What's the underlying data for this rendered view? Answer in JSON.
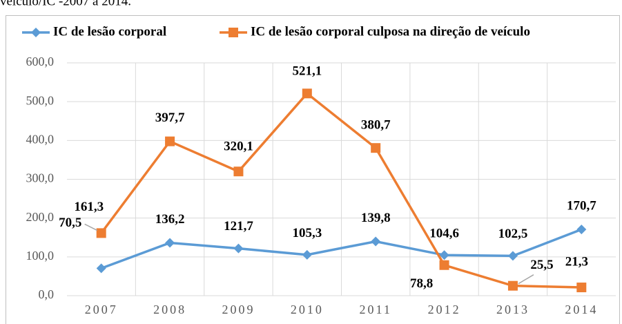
{
  "chart_data": {
    "type": "line",
    "caption": "veículo/IC -2007 a 2014.",
    "categories": [
      "2007",
      "2008",
      "2009",
      "2010",
      "2011",
      "2012",
      "2013",
      "2014"
    ],
    "series": [
      {
        "name": "IC de lesão corporal",
        "color": "#5b9bd5",
        "marker": "diamond",
        "values": [
          70.5,
          136.2,
          121.7,
          105.3,
          139.8,
          104.6,
          102.5,
          170.7
        ],
        "value_labels": [
          "70,5",
          "136,2",
          "121,7",
          "105,3",
          "139,8",
          "104,6",
          "102,5",
          "170,7"
        ]
      },
      {
        "name": "IC de lesão corporal culposa na direção de veículo",
        "color": "#ed7d31",
        "marker": "square",
        "values": [
          161.3,
          397.7,
          320.1,
          521.1,
          380.7,
          78.8,
          25.5,
          21.3
        ],
        "value_labels": [
          "161,3",
          "397,7",
          "320,1",
          "521,1",
          "380,7",
          "78,8",
          "25,5",
          "21,3"
        ]
      }
    ],
    "ylim": [
      0,
      600
    ],
    "yticks": [
      {
        "value": 0,
        "label": "0,0"
      },
      {
        "value": 100,
        "label": "100,0"
      },
      {
        "value": 200,
        "label": "200,0"
      },
      {
        "value": 300,
        "label": "300,0"
      },
      {
        "value": 400,
        "label": "400,0"
      },
      {
        "value": 500,
        "label": "500,0"
      },
      {
        "value": 600,
        "label": "600,0"
      }
    ],
    "grid": true,
    "legend": "top"
  }
}
